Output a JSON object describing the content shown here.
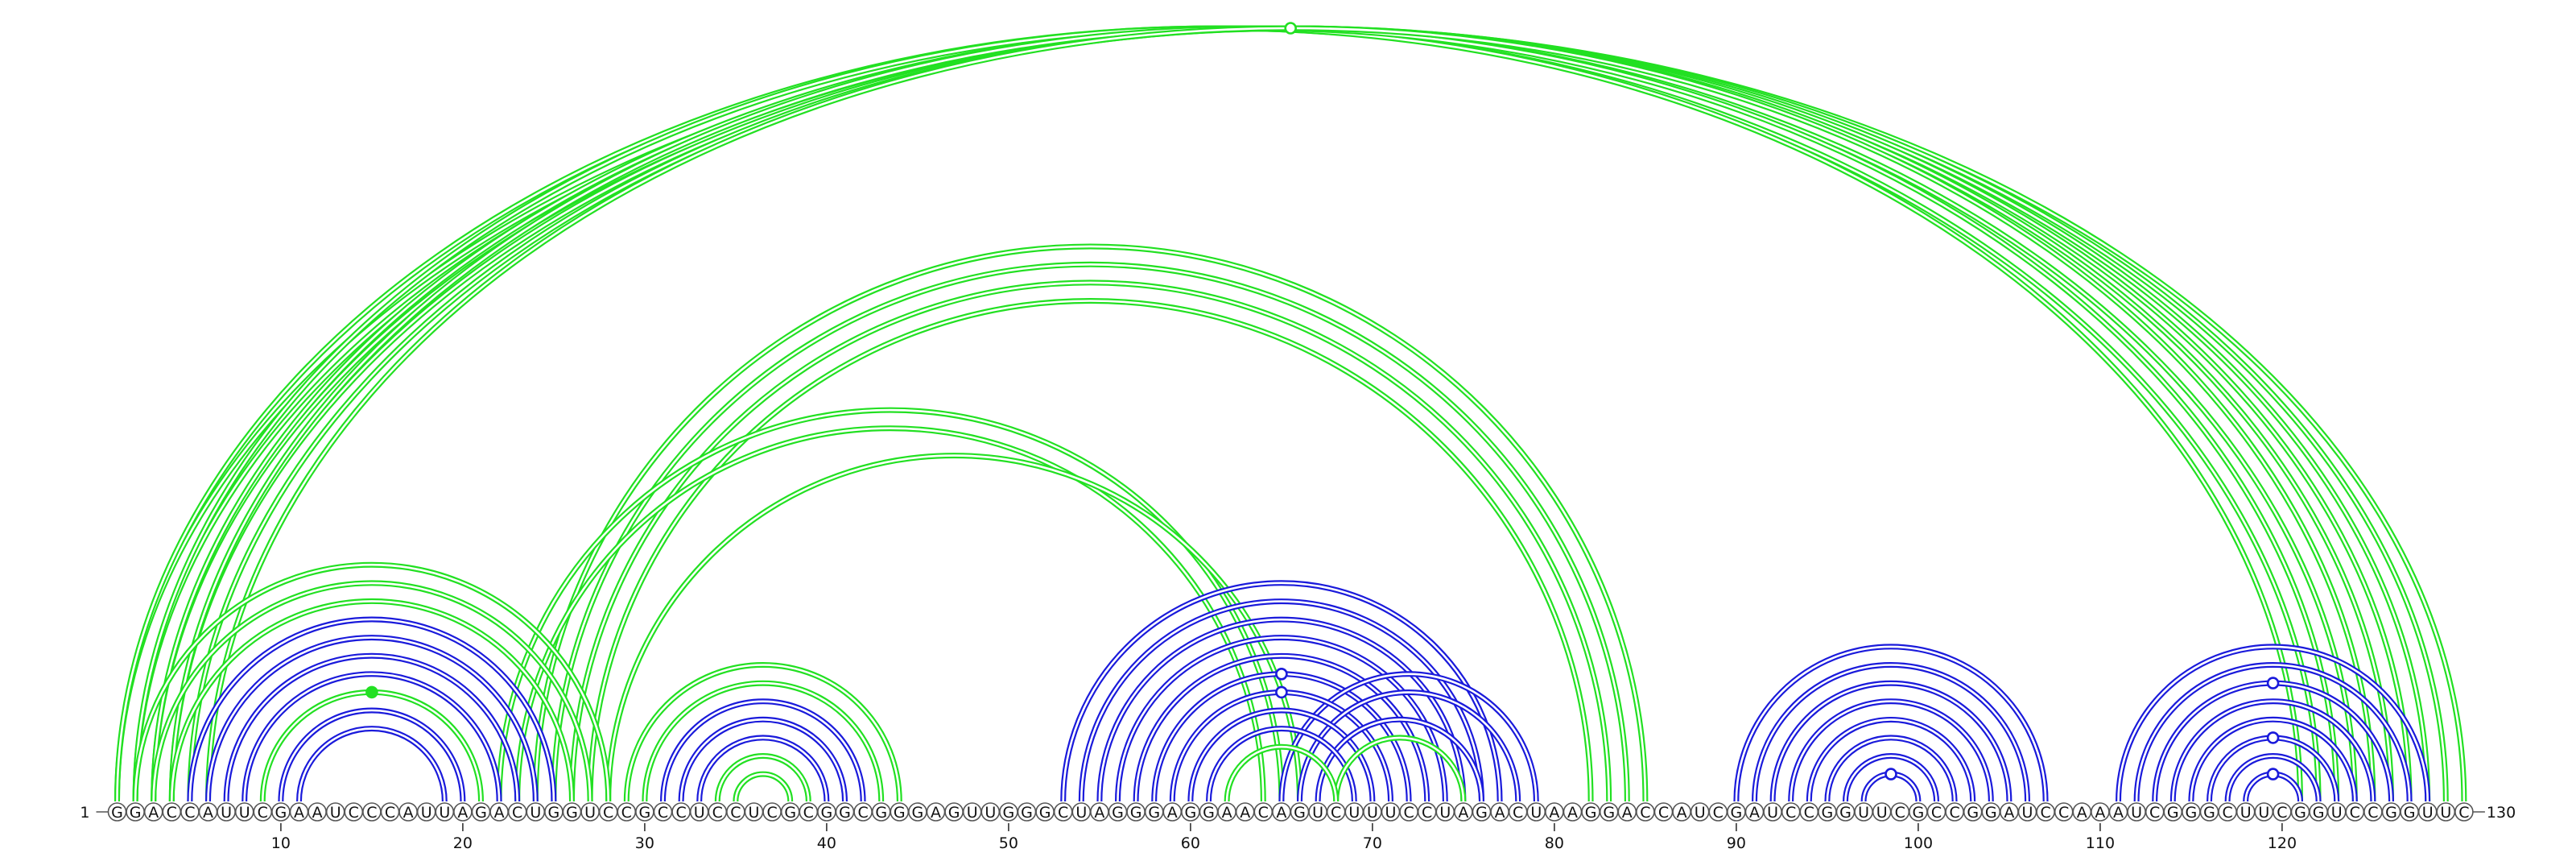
{
  "sequence": "GGACCAUUCGAAUCCCAUUAGACUGGUCCGCCUCCUCGCGGCGGGAGUUGGGCUAGGGAGGAACAGUCUUUCCUAGACUAAGGACCAUCGAUCCGGUUCGCCGGAUCCAAAUCGGGCUUCGGUCCGGUUC",
  "start_label": "1",
  "end_label": "130",
  "ticks": [
    10,
    20,
    30,
    40,
    50,
    60,
    70,
    80,
    90,
    100,
    110,
    120
  ],
  "colors": {
    "blue": "#1a1adb",
    "green": "#22e022"
  },
  "arcs": [
    {
      "i": 1,
      "j": 122,
      "color": "green"
    },
    {
      "i": 2,
      "j": 121,
      "color": "green"
    },
    {
      "i": 3,
      "j": 124,
      "color": "green"
    },
    {
      "i": 4,
      "j": 123,
      "color": "green"
    },
    {
      "i": 5,
      "j": 126,
      "color": "green"
    },
    {
      "i": 6,
      "j": 125,
      "color": "green"
    },
    {
      "i": 1,
      "j": 130,
      "color": "green",
      "marker": "open"
    },
    {
      "i": 2,
      "j": 129,
      "color": "green"
    },
    {
      "i": 3,
      "j": 128,
      "color": "green"
    },
    {
      "i": 4,
      "j": 127,
      "color": "green"
    },
    {
      "i": 2,
      "j": 28,
      "color": "green"
    },
    {
      "i": 3,
      "j": 27,
      "color": "green"
    },
    {
      "i": 4,
      "j": 26,
      "color": "green"
    },
    {
      "i": 5,
      "j": 25,
      "color": "blue"
    },
    {
      "i": 6,
      "j": 24,
      "color": "blue"
    },
    {
      "i": 7,
      "j": 23,
      "color": "blue"
    },
    {
      "i": 8,
      "j": 22,
      "color": "blue"
    },
    {
      "i": 9,
      "j": 21,
      "color": "green",
      "marker": "filled"
    },
    {
      "i": 10,
      "j": 20,
      "color": "blue"
    },
    {
      "i": 11,
      "j": 19,
      "color": "blue"
    },
    {
      "i": 22,
      "j": 65,
      "color": "green"
    },
    {
      "i": 23,
      "j": 64,
      "color": "green"
    },
    {
      "i": 24,
      "j": 85,
      "color": "green"
    },
    {
      "i": 25,
      "j": 84,
      "color": "green"
    },
    {
      "i": 26,
      "j": 83,
      "color": "green"
    },
    {
      "i": 27,
      "j": 82,
      "color": "green"
    },
    {
      "i": 28,
      "j": 66,
      "color": "green"
    },
    {
      "i": 29,
      "j": 44,
      "color": "green"
    },
    {
      "i": 30,
      "j": 43,
      "color": "green"
    },
    {
      "i": 31,
      "j": 42,
      "color": "blue"
    },
    {
      "i": 32,
      "j": 41,
      "color": "blue"
    },
    {
      "i": 33,
      "j": 40,
      "color": "blue"
    },
    {
      "i": 34,
      "j": 39,
      "color": "green"
    },
    {
      "i": 35,
      "j": 38,
      "color": "green"
    },
    {
      "i": 53,
      "j": 77,
      "color": "blue"
    },
    {
      "i": 54,
      "j": 76,
      "color": "blue"
    },
    {
      "i": 55,
      "j": 75,
      "color": "blue"
    },
    {
      "i": 56,
      "j": 74,
      "color": "blue"
    },
    {
      "i": 57,
      "j": 73,
      "color": "blue"
    },
    {
      "i": 58,
      "j": 72,
      "color": "blue",
      "marker": "open"
    },
    {
      "i": 59,
      "j": 71,
      "color": "blue",
      "marker": "open"
    },
    {
      "i": 60,
      "j": 70,
      "color": "blue"
    },
    {
      "i": 61,
      "j": 69,
      "color": "blue"
    },
    {
      "i": 62,
      "j": 68,
      "color": "green"
    },
    {
      "i": 65,
      "j": 79,
      "color": "blue"
    },
    {
      "i": 66,
      "j": 78,
      "color": "blue"
    },
    {
      "i": 67,
      "j": 76,
      "color": "blue"
    },
    {
      "i": 68,
      "j": 75,
      "color": "green"
    },
    {
      "i": 90,
      "j": 107,
      "color": "blue"
    },
    {
      "i": 91,
      "j": 106,
      "color": "blue"
    },
    {
      "i": 92,
      "j": 105,
      "color": "blue"
    },
    {
      "i": 93,
      "j": 104,
      "color": "blue"
    },
    {
      "i": 94,
      "j": 103,
      "color": "blue"
    },
    {
      "i": 95,
      "j": 102,
      "color": "blue"
    },
    {
      "i": 96,
      "j": 101,
      "color": "blue"
    },
    {
      "i": 97,
      "j": 100,
      "color": "blue",
      "marker": "open"
    },
    {
      "i": 111,
      "j": 128,
      "color": "blue"
    },
    {
      "i": 112,
      "j": 127,
      "color": "blue"
    },
    {
      "i": 113,
      "j": 126,
      "color": "blue",
      "marker": "open"
    },
    {
      "i": 114,
      "j": 125,
      "color": "blue"
    },
    {
      "i": 115,
      "j": 124,
      "color": "blue"
    },
    {
      "i": 116,
      "j": 123,
      "color": "blue",
      "marker": "open"
    },
    {
      "i": 117,
      "j": 122,
      "color": "blue"
    },
    {
      "i": 118,
      "j": 121,
      "color": "blue",
      "marker": "open"
    }
  ]
}
